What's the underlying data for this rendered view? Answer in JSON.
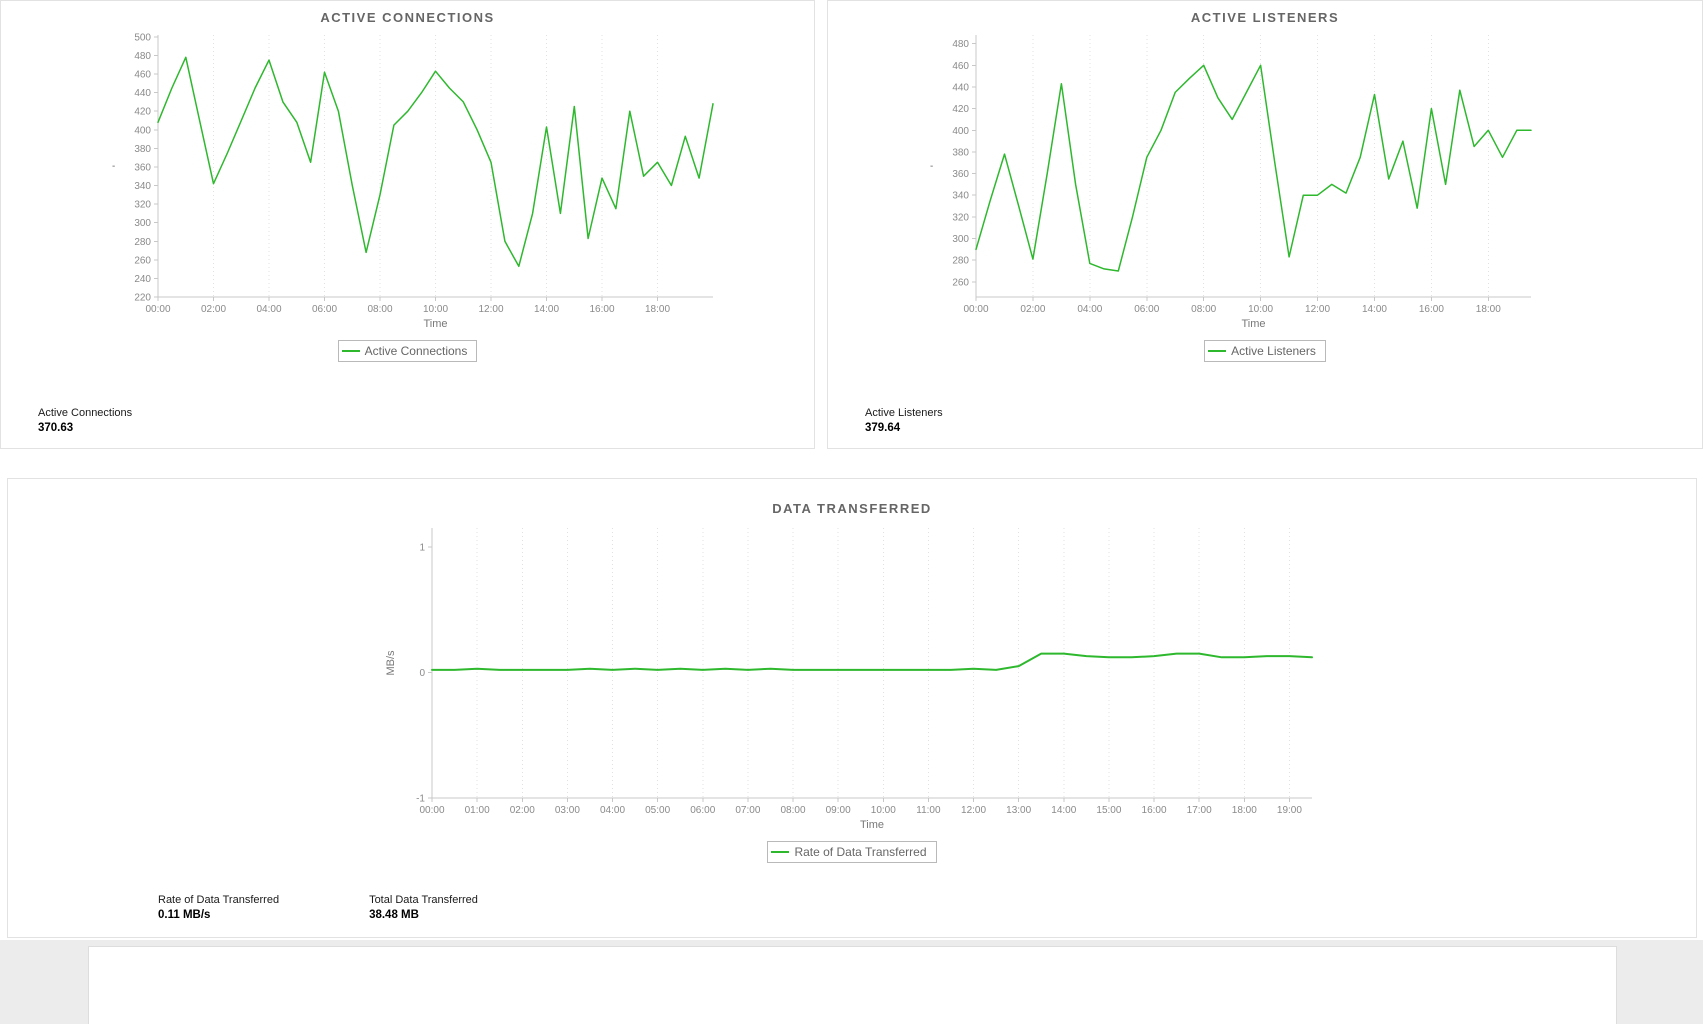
{
  "colors": {
    "line_green": "#2eb82e",
    "axis": "#c8c8c8",
    "grid": "#e1e1e1",
    "title_text": "#666666",
    "tick_text": "#8a8a8a"
  },
  "chart_data": [
    {
      "type": "line",
      "title": "ACTIVE CONNECTIONS",
      "xlabel": "Time",
      "ylabel": "'",
      "ylim": [
        220,
        502
      ],
      "yticks": [
        220,
        240,
        260,
        280,
        300,
        320,
        340,
        360,
        380,
        400,
        420,
        440,
        460,
        480,
        500
      ],
      "x_range": [
        0,
        20
      ],
      "xticks": [
        0,
        2,
        4,
        6,
        8,
        10,
        12,
        14,
        16,
        18
      ],
      "xtick_labels": [
        "00:00",
        "02:00",
        "04:00",
        "06:00",
        "08:00",
        "10:00",
        "12:00",
        "14:00",
        "16:00",
        "18:00"
      ],
      "grid": "vertical-dotted",
      "legend_position": "bottom",
      "series": [
        {
          "name": "Active Connections",
          "color": "#2eb82e",
          "values": [
            408,
            445,
            478,
            410,
            342,
            375,
            410,
            445,
            475,
            430,
            408,
            365,
            462,
            420,
            340,
            268,
            330,
            405,
            420,
            440,
            463,
            445,
            430,
            400,
            365,
            280,
            253,
            310,
            403,
            310,
            425,
            283,
            348,
            315,
            420,
            350,
            365,
            340,
            393,
            348,
            428
          ]
        }
      ]
    },
    {
      "type": "line",
      "title": "ACTIVE LISTENERS",
      "xlabel": "Time",
      "ylabel": "'",
      "ylim": [
        246,
        488
      ],
      "yticks": [
        260,
        280,
        300,
        320,
        340,
        360,
        380,
        400,
        420,
        440,
        460,
        480
      ],
      "x_range": [
        0,
        19.5
      ],
      "xticks": [
        0,
        2,
        4,
        6,
        8,
        10,
        12,
        14,
        16,
        18
      ],
      "xtick_labels": [
        "00:00",
        "02:00",
        "04:00",
        "06:00",
        "08:00",
        "10:00",
        "12:00",
        "14:00",
        "16:00",
        "18:00"
      ],
      "grid": "vertical-dotted",
      "legend_position": "bottom",
      "series": [
        {
          "name": "Active Listeners",
          "color": "#2eb82e",
          "values": [
            290,
            335,
            378,
            330,
            281,
            360,
            443,
            350,
            277,
            272,
            270,
            320,
            375,
            400,
            435,
            448,
            460,
            430,
            410,
            435,
            460,
            370,
            283,
            340,
            340,
            350,
            342,
            375,
            433,
            355,
            390,
            328,
            420,
            350,
            437,
            385,
            400,
            375,
            400,
            400
          ]
        }
      ]
    },
    {
      "type": "line",
      "title": "DATA TRANSFERRED",
      "xlabel": "Time",
      "ylabel": "MB/s",
      "ylim": [
        -1,
        1.15
      ],
      "yticks": [
        -1,
        0,
        1
      ],
      "x_range": [
        0,
        19.5
      ],
      "xticks": [
        0,
        1,
        2,
        3,
        4,
        5,
        6,
        7,
        8,
        9,
        10,
        11,
        12,
        13,
        14,
        15,
        16,
        17,
        18,
        19
      ],
      "xtick_labels": [
        "00:00",
        "01:00",
        "02:00",
        "03:00",
        "04:00",
        "05:00",
        "06:00",
        "07:00",
        "08:00",
        "09:00",
        "10:00",
        "11:00",
        "12:00",
        "13:00",
        "14:00",
        "15:00",
        "16:00",
        "17:00",
        "18:00",
        "19:00"
      ],
      "grid": "vertical-dotted",
      "legend_position": "bottom",
      "series": [
        {
          "name": "Rate of Data Transferred",
          "color": "#2eb82e",
          "values": [
            0.02,
            0.02,
            0.03,
            0.02,
            0.02,
            0.02,
            0.02,
            0.03,
            0.02,
            0.03,
            0.02,
            0.03,
            0.02,
            0.03,
            0.02,
            0.03,
            0.02,
            0.02,
            0.02,
            0.02,
            0.02,
            0.02,
            0.02,
            0.02,
            0.03,
            0.02,
            0.05,
            0.15,
            0.15,
            0.13,
            0.12,
            0.12,
            0.13,
            0.15,
            0.15,
            0.12,
            0.12,
            0.13,
            0.13,
            0.12
          ]
        }
      ]
    }
  ],
  "panels": [
    {
      "stats": [
        {
          "label": "Active Connections",
          "value": "370.63"
        }
      ]
    },
    {
      "stats": [
        {
          "label": "Active Listeners",
          "value": "379.64"
        }
      ]
    },
    {
      "stats": [
        {
          "label": "Rate of Data Transferred",
          "value": "0.11 MB/s"
        },
        {
          "label": "Total Data Transferred",
          "value": "38.48 MB"
        }
      ]
    }
  ]
}
